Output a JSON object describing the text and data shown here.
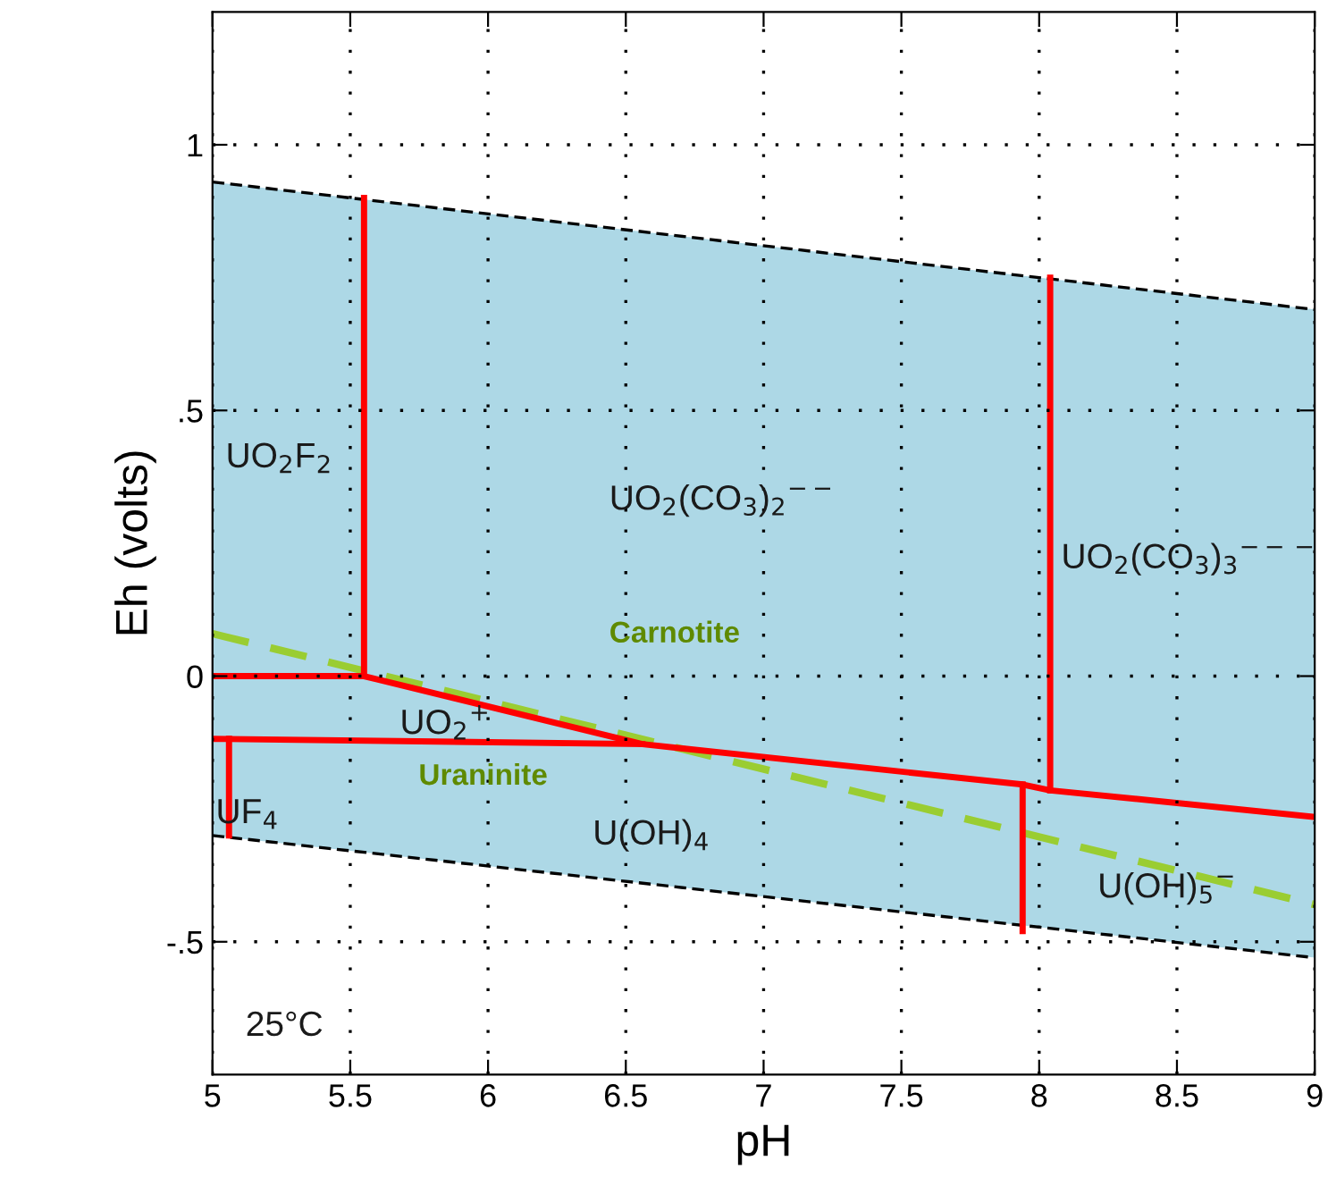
{
  "chart_data": {
    "type": "line",
    "xlabel": "pH",
    "ylabel": "Eh (volts)",
    "xlim": [
      5,
      9
    ],
    "ylim": [
      -0.75,
      1.25
    ],
    "xticks": [
      5,
      5.5,
      6,
      6.5,
      7,
      7.5,
      8,
      8.5,
      9
    ],
    "yticks": [
      {
        "value": -0.5,
        "label": "-.5"
      },
      0,
      {
        "value": 0.5,
        "label": ".5"
      },
      1
    ],
    "grid": true,
    "legend": false,
    "series": [
      {
        "line_style": "dashed",
        "color": "#000000",
        "x": [
          5,
          9
        ],
        "values": [
          0.93,
          0.69
        ],
        "lower": [
          -0.3,
          -0.53
        ],
        "upper": [
          0.93,
          0.69
        ]
      },
      {
        "line_style": "dashed",
        "color": "#000000",
        "x": [
          5,
          9
        ],
        "values": [
          -0.3,
          -0.53
        ]
      },
      {
        "line_style": "dashed",
        "color": "#9acd32",
        "x": [
          5,
          9
        ],
        "values": [
          0.08,
          -0.43
        ]
      },
      {
        "line_style": "solid",
        "color": "#ff0000",
        "x": [
          5.55,
          5.55
        ],
        "values": [
          0.9,
          0
        ]
      },
      {
        "line_style": "solid",
        "color": "#ff0000",
        "x": [
          5,
          5.55,
          6.56,
          7.94,
          8.04,
          9
        ],
        "values": [
          0,
          0,
          -0.128,
          -0.204,
          -0.215,
          -0.265
        ]
      },
      {
        "line_style": "solid",
        "color": "#ff0000",
        "x": [
          5,
          6.56
        ],
        "values": [
          -0.118,
          -0.128
        ]
      },
      {
        "line_style": "solid",
        "color": "#ff0000",
        "x": [
          5.06,
          5.06
        ],
        "values": [
          -0.118,
          -0.3
        ]
      },
      {
        "line_style": "solid",
        "color": "#ff0000",
        "x": [
          7.94,
          7.94
        ],
        "values": [
          -0.204,
          -0.48
        ]
      },
      {
        "line_style": "solid",
        "color": "#ff0000",
        "x": [
          8.04,
          8.04
        ],
        "values": [
          0.75,
          -0.215
        ]
      }
    ],
    "annotations": [
      "UO$_{2}$F$_{2}$",
      "UO$_{2}$(CO$_{3}$)$_{2}$$^{−−}$",
      "UO$_{2}$(CO$_{3}$)$_{3}$$^{−−−}$",
      "Carnotite",
      "UO$_{2}$$^{+}$",
      "Uraninite",
      "UF$_{4}$",
      "U(OH)$_{4}$",
      "U(OH)$_{5}$$^{−}$",
      "25°C"
    ]
  }
}
